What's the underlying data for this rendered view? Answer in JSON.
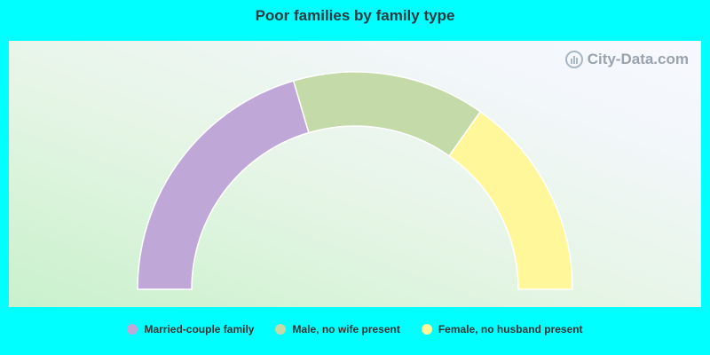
{
  "chart_data": {
    "type": "pie",
    "title": "Poor families by family type",
    "variant": "semi-donut",
    "series": [
      {
        "name": "Married-couple family",
        "value": 47,
        "color": "#bfa8d8"
      },
      {
        "name": "Male, no wife present",
        "value": 33,
        "color": "#c4daa8"
      },
      {
        "name": "Female, no husband present",
        "value": 35,
        "color": "#fff799"
      }
    ],
    "legend_position": "bottom"
  },
  "watermark": {
    "text": "City-Data.com",
    "icon": "city-data-logo-icon"
  }
}
